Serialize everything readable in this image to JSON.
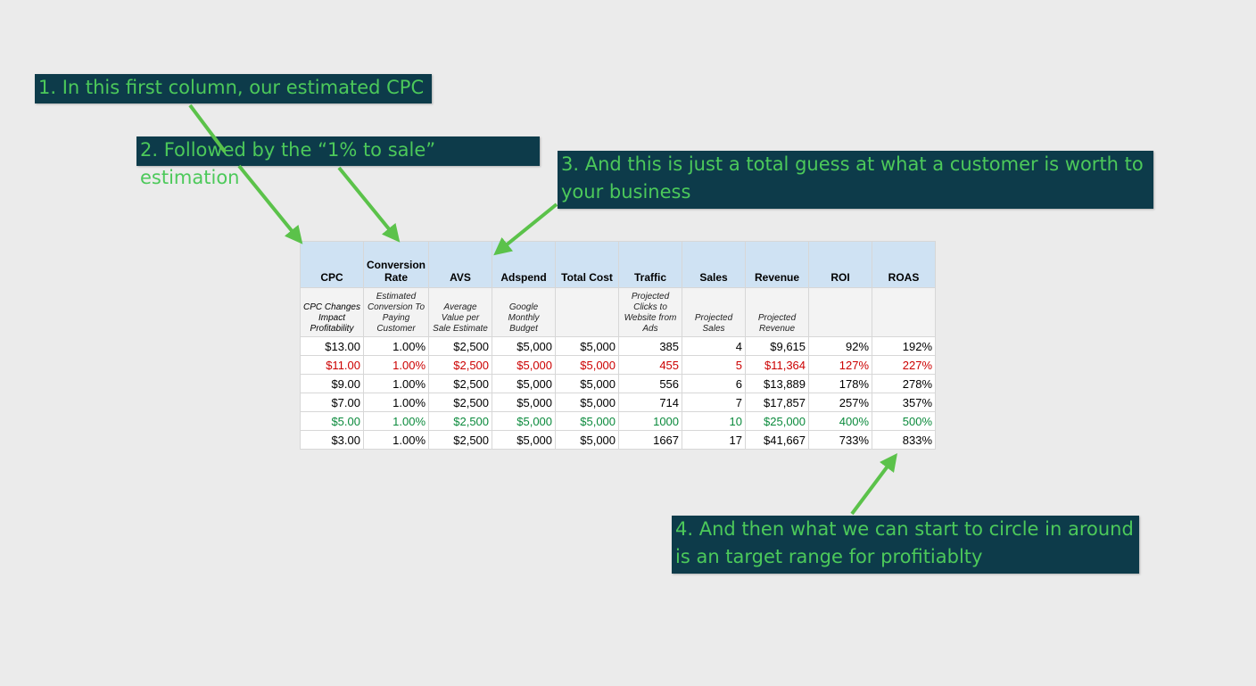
{
  "callouts": {
    "c1": "1. In this first column, our estimated CPC",
    "c2": "2. Followed by the “1% to sale” estimation",
    "c3": "3. And this is just a total guess at what a customer is worth to your business",
    "c4": "4. And then what we can start to circle in around is an target range for profitiablty"
  },
  "table": {
    "headers": [
      "CPC",
      "Conversion Rate",
      "AVS",
      "Adspend",
      "Total Cost",
      "Traffic",
      "Sales",
      "Revenue",
      "ROI",
      "ROAS"
    ],
    "subheaders": [
      "CPC Changes Impact Profitability",
      "Estimated Conversion To Paying Customer",
      "Average Value per Sale Estimate",
      "Google Monthly Budget",
      "",
      "Projected Clicks to Website from Ads",
      "Projected Sales",
      "Projected Revenue",
      "",
      ""
    ],
    "rows": [
      {
        "highlight": "none",
        "cells": [
          "$13.00",
          "1.00%",
          "$2,500",
          "$5,000",
          "$5,000",
          "385",
          "4",
          "$9,615",
          "92%",
          "192%"
        ]
      },
      {
        "highlight": "red",
        "cells": [
          "$11.00",
          "1.00%",
          "$2,500",
          "$5,000",
          "$5,000",
          "455",
          "5",
          "$11,364",
          "127%",
          "227%"
        ]
      },
      {
        "highlight": "none",
        "cells": [
          "$9.00",
          "1.00%",
          "$2,500",
          "$5,000",
          "$5,000",
          "556",
          "6",
          "$13,889",
          "178%",
          "278%"
        ]
      },
      {
        "highlight": "none",
        "cells": [
          "$7.00",
          "1.00%",
          "$2,500",
          "$5,000",
          "$5,000",
          "714",
          "7",
          "$17,857",
          "257%",
          "357%"
        ]
      },
      {
        "highlight": "green",
        "cells": [
          "$5.00",
          "1.00%",
          "$2,500",
          "$5,000",
          "$5,000",
          "1000",
          "10",
          "$25,000",
          "400%",
          "500%"
        ]
      },
      {
        "highlight": "none",
        "cells": [
          "$3.00",
          "1.00%",
          "$2,500",
          "$5,000",
          "$5,000",
          "1667",
          "17",
          "$41,667",
          "733%",
          "833%"
        ]
      }
    ]
  },
  "colors": {
    "background": "#ebebeb",
    "callout_bg": "#0d3b4a",
    "callout_text": "#4cc95a",
    "arrow": "#5bc24a",
    "header_bg": "#cfe2f3",
    "red_text": "#cc0000",
    "green_text": "#0b8a3c"
  }
}
